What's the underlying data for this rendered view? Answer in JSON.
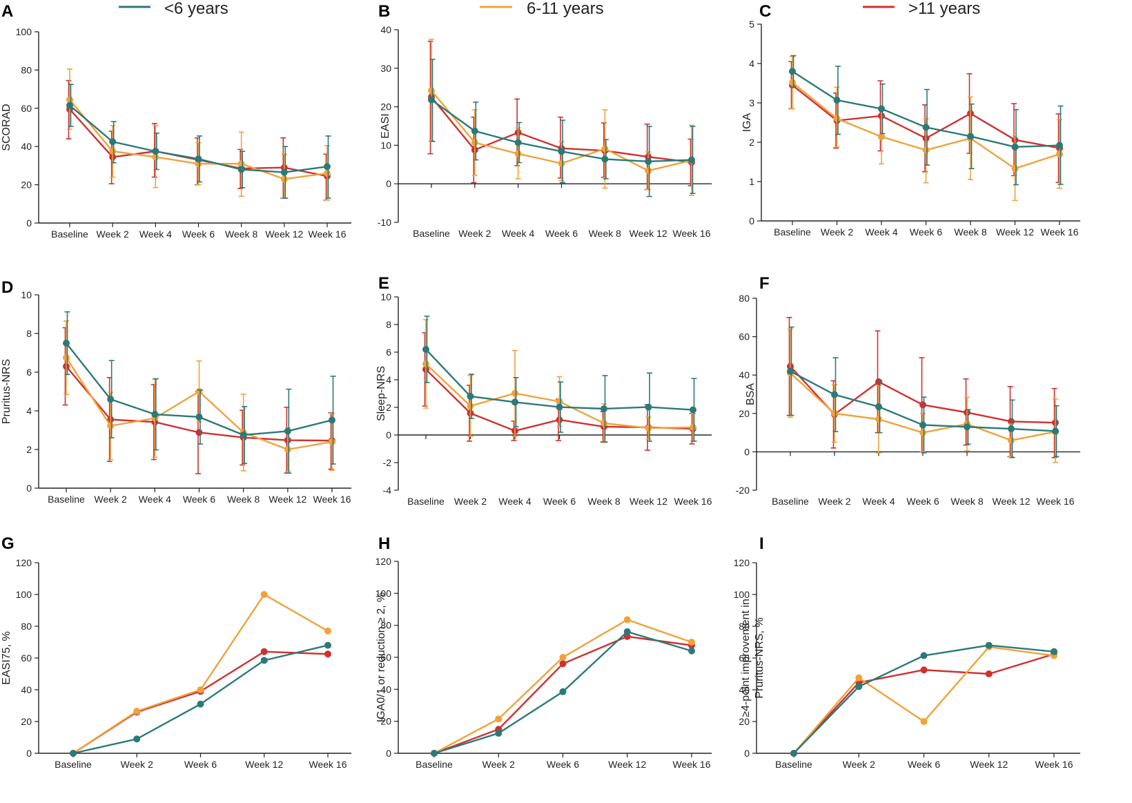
{
  "legend": [
    {
      "label": "<6 years",
      "color": "#2a7a78"
    },
    {
      "label": "6-11 years",
      "color": "#f0a23a"
    },
    {
      "label": ">11 years",
      "color": "#d0302f"
    }
  ],
  "chart_data": [
    {
      "type": "line",
      "panel": "A",
      "ylabel": "SCORAD",
      "ylim": [
        0,
        100
      ],
      "yticks": [
        0,
        20,
        40,
        60,
        80,
        100
      ],
      "categories": [
        "Baseline",
        "Week 2",
        "Week 4",
        "Week 6",
        "Week 8",
        "Week 12",
        "Week 16"
      ],
      "series": [
        {
          "name": ">11 years",
          "values": [
            59.5,
            34.5,
            37.5,
            33,
            28.5,
            29,
            24.5
          ],
          "err_lo": [
            44,
            20.5,
            24,
            20,
            18,
            13,
            12
          ],
          "err_hi": [
            74.5,
            48,
            52,
            44.5,
            38.5,
            44.5,
            36
          ]
        },
        {
          "name": "6-11 years",
          "values": [
            64.5,
            37.5,
            34.5,
            31,
            31,
            23,
            26
          ],
          "err_lo": [
            49,
            24,
            18.5,
            20,
            14,
            13,
            12
          ],
          "err_hi": [
            80.5,
            51,
            51,
            42,
            47.5,
            36,
            40.5
          ]
        },
        {
          "name": "<6 years",
          "values": [
            61.5,
            42.5,
            37.5,
            33.5,
            28,
            26.5,
            29.5
          ],
          "err_lo": [
            50.5,
            31.5,
            28,
            21.5,
            18.5,
            13,
            13
          ],
          "err_hi": [
            72.5,
            53,
            47,
            45.5,
            37.5,
            40,
            45.5
          ]
        }
      ]
    },
    {
      "type": "line",
      "panel": "B",
      "ylabel": "EASI",
      "ylim": [
        -10,
        40
      ],
      "yticks": [
        -10,
        0,
        10,
        20,
        30,
        40
      ],
      "categories": [
        "Baseline",
        "Week 2",
        "Week 4",
        "Week 6",
        "Week 8",
        "Week 12",
        "Week 16"
      ],
      "series": [
        {
          "name": ">11 years",
          "values": [
            22.5,
            8.8,
            13.3,
            9.2,
            8.6,
            7,
            5.6
          ],
          "err_lo": [
            7.8,
            0.3,
            4.7,
            1.5,
            1.7,
            -1.5,
            -0.5
          ],
          "err_hi": [
            37,
            17.3,
            22,
            17.3,
            15.8,
            15.5,
            11.6
          ]
        },
        {
          "name": "6-11 years",
          "values": [
            24.2,
            10.7,
            7.8,
            5.3,
            9.1,
            3.4,
            6.1
          ],
          "err_lo": [
            11.2,
            2.2,
            1.3,
            0.8,
            -1.1,
            -1.5,
            -3
          ],
          "err_hi": [
            37.5,
            19.2,
            14.5,
            11,
            19.2,
            8.3,
            15.2
          ]
        },
        {
          "name": "<6 years",
          "values": [
            21.8,
            13.7,
            10.7,
            8.4,
            6.4,
            5.8,
            6.2
          ],
          "err_lo": [
            11,
            6.2,
            5.5,
            0.3,
            1.3,
            -3.3,
            -2.5
          ],
          "err_hi": [
            32.3,
            21.2,
            15.9,
            16.5,
            11.5,
            14.9,
            14.9
          ]
        }
      ]
    },
    {
      "type": "line",
      "panel": "C",
      "ylabel": "IGA",
      "ylim": [
        0,
        5
      ],
      "yticks": [
        0,
        1,
        2,
        3,
        4,
        5
      ],
      "categories": [
        "Baseline",
        "Week 2",
        "Week 4",
        "Week 6",
        "Week 8",
        "Week 12",
        "Week 16"
      ],
      "series": [
        {
          "name": ">11 years",
          "values": [
            3.45,
            2.55,
            2.67,
            2.1,
            2.73,
            2.06,
            1.85
          ],
          "err_lo": [
            2.85,
            1.85,
            1.78,
            1.25,
            1.72,
            1.15,
            0.98
          ],
          "err_hi": [
            4.05,
            3.25,
            3.56,
            2.95,
            3.74,
            2.98,
            2.72
          ]
        },
        {
          "name": "6-11 years",
          "values": [
            3.52,
            2.6,
            2.14,
            1.8,
            2.1,
            1.33,
            1.7
          ],
          "err_lo": [
            2.85,
            1.88,
            1.45,
            0.97,
            1.05,
            0.52,
            0.83
          ],
          "err_hi": [
            4.18,
            3.4,
            2.85,
            2.6,
            3.15,
            2.12,
            2.57
          ]
        },
        {
          "name": "<6 years",
          "values": [
            3.8,
            3.07,
            2.85,
            2.38,
            2.15,
            1.88,
            1.92
          ],
          "err_lo": [
            3.4,
            2.2,
            2.22,
            1.42,
            1.33,
            0.92,
            0.93
          ],
          "err_hi": [
            4.2,
            3.93,
            3.48,
            3.34,
            2.97,
            2.83,
            2.92
          ]
        }
      ]
    },
    {
      "type": "line",
      "panel": "D",
      "ylabel": "Pruritus-NRS",
      "ylim": [
        0,
        10
      ],
      "yticks": [
        0,
        2,
        4,
        6,
        8,
        10
      ],
      "categories": [
        "Baseline",
        "Week 2",
        "Week 4",
        "Week 6",
        "Week 8",
        "Week 12",
        "Week 16"
      ],
      "series": [
        {
          "name": ">11 years",
          "values": [
            6.3,
            3.55,
            3.42,
            2.88,
            2.62,
            2.48,
            2.46
          ],
          "err_lo": [
            4.3,
            1.38,
            1.48,
            0.75,
            1.2,
            0.78,
            0.98
          ],
          "err_hi": [
            8.3,
            5.72,
            5.36,
            5.0,
            4.03,
            4.18,
            3.9
          ]
        },
        {
          "name": "6-11 years",
          "values": [
            6.75,
            3.22,
            3.62,
            5.0,
            2.88,
            2.0,
            2.4
          ],
          "err_lo": [
            4.85,
            1.48,
            1.6,
            3.42,
            0.9,
            0.88,
            0.92
          ],
          "err_hi": [
            8.65,
            4.96,
            5.64,
            6.58,
            4.86,
            3.12,
            3.88
          ]
        },
        {
          "name": "<6 years",
          "values": [
            7.5,
            4.6,
            3.82,
            3.68,
            2.75,
            2.95,
            3.52
          ],
          "err_lo": [
            5.88,
            2.6,
            1.98,
            2.28,
            1.28,
            0.78,
            1.25
          ],
          "err_hi": [
            9.12,
            6.6,
            5.66,
            5.08,
            4.22,
            5.12,
            5.79
          ]
        }
      ]
    },
    {
      "type": "line",
      "panel": "E",
      "ylabel": "Sleep-NRS",
      "ylim": [
        -4,
        10
      ],
      "yticks": [
        -4,
        -2,
        0,
        2,
        4,
        6,
        8,
        10
      ],
      "categories": [
        "Baseline",
        "Week 2",
        "Week 4",
        "Week 6",
        "Week 8",
        "Week 12",
        "Week 16"
      ],
      "series": [
        {
          "name": ">11 years",
          "values": [
            4.75,
            1.58,
            0.3,
            1.1,
            0.6,
            0.55,
            0.45
          ],
          "err_lo": [
            2.1,
            -0.45,
            -0.4,
            -0.4,
            -0.5,
            -1.1,
            -0.65
          ],
          "err_hi": [
            7.4,
            3.6,
            1.0,
            2.6,
            1.7,
            2.2,
            1.55
          ]
        },
        {
          "name": "6-11 years",
          "values": [
            5.15,
            2.1,
            3.02,
            2.42,
            0.85,
            0.5,
            0.55
          ],
          "err_lo": [
            1.95,
            -0.1,
            -0.1,
            0.62,
            -0.55,
            -0.3,
            -0.45
          ],
          "err_hi": [
            8.35,
            4.3,
            6.12,
            4.22,
            2.25,
            1.3,
            1.55
          ]
        },
        {
          "name": "<6 years",
          "values": [
            6.2,
            2.8,
            2.38,
            2.02,
            1.9,
            2.02,
            1.82
          ],
          "err_lo": [
            3.8,
            1.2,
            0.6,
            0.2,
            -0.5,
            -0.45,
            -0.45
          ],
          "err_hi": [
            8.6,
            4.4,
            4.16,
            3.84,
            4.3,
            4.49,
            4.09
          ]
        }
      ]
    },
    {
      "type": "line",
      "panel": "F",
      "ylabel": "BSA",
      "ylim": [
        -20,
        80
      ],
      "yticks": [
        -20,
        0,
        20,
        40,
        60,
        80
      ],
      "categories": [
        "Baseline",
        "Week 2",
        "Week 4",
        "Week 6",
        "Week 8",
        "Week 12",
        "Week 16"
      ],
      "series": [
        {
          "name": ">11 years",
          "values": [
            44.5,
            19.5,
            36.5,
            24.5,
            20.5,
            15.8,
            15.2
          ],
          "err_lo": [
            19,
            2,
            10,
            0,
            3.5,
            -2.5,
            -3
          ],
          "err_hi": [
            70,
            37,
            63,
            49,
            38,
            34,
            33
          ]
        },
        {
          "name": "6-11 years",
          "values": [
            41,
            20,
            17,
            10,
            14.5,
            6,
            10.5
          ],
          "err_lo": [
            18,
            5,
            -0.5,
            0,
            0.5,
            -2.5,
            -5.5
          ],
          "err_hi": [
            64,
            35,
            34.5,
            20,
            28.5,
            14.5,
            27.5
          ]
        },
        {
          "name": "<6 years",
          "values": [
            42,
            29.8,
            23.5,
            14,
            13,
            12,
            10.8
          ],
          "err_lo": [
            19,
            10.5,
            10,
            -0.5,
            4,
            -3,
            -2.5
          ],
          "err_hi": [
            65,
            49,
            37,
            28.5,
            22,
            27,
            24
          ]
        }
      ]
    },
    {
      "type": "line",
      "panel": "G",
      "ylabel": "EASI75, %",
      "ylim": [
        0,
        120
      ],
      "yticks": [
        0,
        20,
        40,
        60,
        80,
        100,
        120
      ],
      "categories": [
        "Baseline",
        "Week 2",
        "Week 6",
        "Week 12",
        "Week 16"
      ],
      "series": [
        {
          "name": ">11 years",
          "values": [
            0,
            26,
            39,
            64,
            62.5
          ]
        },
        {
          "name": "6-11 years",
          "values": [
            0,
            26.5,
            40,
            100,
            77
          ]
        },
        {
          "name": "<6 years",
          "values": [
            0,
            9,
            31,
            58.5,
            68
          ]
        }
      ]
    },
    {
      "type": "line",
      "panel": "H",
      "ylabel": "IGA0/1 or reduction ≥ 2, %",
      "ylim": [
        0,
        120
      ],
      "yticks": [
        0,
        20,
        40,
        60,
        80,
        100,
        120
      ],
      "categories": [
        "Baseline",
        "Week 2",
        "Week 6",
        "Week 12",
        "Week 16"
      ],
      "series": [
        {
          "name": ">11 years",
          "values": [
            0,
            15,
            56,
            73,
            67.5
          ]
        },
        {
          "name": "6-11 years",
          "values": [
            0,
            21.5,
            60,
            83.5,
            69.5
          ]
        },
        {
          "name": "<6 years",
          "values": [
            0,
            12.5,
            38.5,
            76,
            64
          ]
        }
      ]
    },
    {
      "type": "line",
      "panel": "I",
      "ylabel": "≥4-point improvement in Pruritus-NRS, %",
      "ylabel_lines": [
        "≥4-point improvement in",
        "Pruritus-NRS, %"
      ],
      "ylim": [
        0,
        120
      ],
      "yticks": [
        0,
        20,
        40,
        60,
        80,
        100,
        120
      ],
      "categories": [
        "Baseline",
        "Week 2",
        "Week 6",
        "Week 12",
        "Week 16"
      ],
      "series": [
        {
          "name": ">11 years",
          "values": [
            0,
            44.5,
            52.5,
            50,
            62.5
          ]
        },
        {
          "name": "6-11 years",
          "values": [
            0,
            47.5,
            20,
            67,
            61.5
          ]
        },
        {
          "name": "<6 years",
          "values": [
            0,
            42,
            61.5,
            68,
            64
          ]
        }
      ]
    }
  ]
}
